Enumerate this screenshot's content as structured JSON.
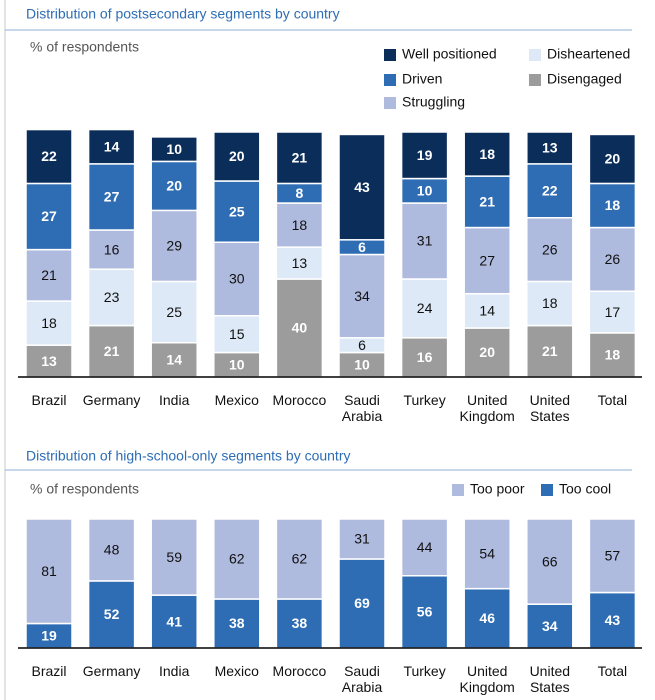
{
  "chart_data": [
    {
      "type": "stacked_bar",
      "title": "Distribution of postsecondary segments by country",
      "subtitle": "% of respondents",
      "categories": [
        "Brazil",
        "Germany",
        "India",
        "Mexico",
        "Morocco",
        "Saudi Arabia",
        "Turkey",
        "United Kingdom",
        "United States",
        "Total"
      ],
      "ylim": [
        0,
        100
      ],
      "series": [
        {
          "name": "Disengaged",
          "color": "#9c9c9c",
          "values": [
            13,
            21,
            14,
            10,
            40,
            10,
            16,
            20,
            21,
            18
          ]
        },
        {
          "name": "Disheartened",
          "color": "#dde9f6",
          "values": [
            18,
            23,
            25,
            15,
            13,
            6,
            24,
            14,
            18,
            17
          ]
        },
        {
          "name": "Struggling",
          "color": "#afbadf",
          "values": [
            21,
            16,
            29,
            30,
            18,
            34,
            31,
            27,
            26,
            26
          ]
        },
        {
          "name": "Driven",
          "color": "#2e6db4",
          "values": [
            27,
            27,
            20,
            25,
            8,
            6,
            10,
            21,
            22,
            18
          ]
        },
        {
          "name": "Well positioned",
          "color": "#0b2d5a",
          "values": [
            22,
            14,
            10,
            20,
            21,
            43,
            19,
            18,
            13,
            20
          ]
        }
      ]
    },
    {
      "type": "stacked_bar",
      "title": "Distribution of high-school-only segments by country",
      "subtitle": "% of respondents",
      "categories": [
        "Brazil",
        "Germany",
        "India",
        "Mexico",
        "Morocco",
        "Saudi Arabia",
        "Turkey",
        "United Kingdom",
        "United States",
        "Total"
      ],
      "ylim": [
        0,
        100
      ],
      "series": [
        {
          "name": "Too cool",
          "color": "#2e6db4",
          "values": [
            19,
            52,
            41,
            38,
            38,
            69,
            56,
            46,
            34,
            43
          ]
        },
        {
          "name": "Too poor",
          "color": "#afbadf",
          "values": [
            81,
            48,
            59,
            62,
            62,
            31,
            44,
            54,
            66,
            57
          ]
        }
      ]
    }
  ]
}
